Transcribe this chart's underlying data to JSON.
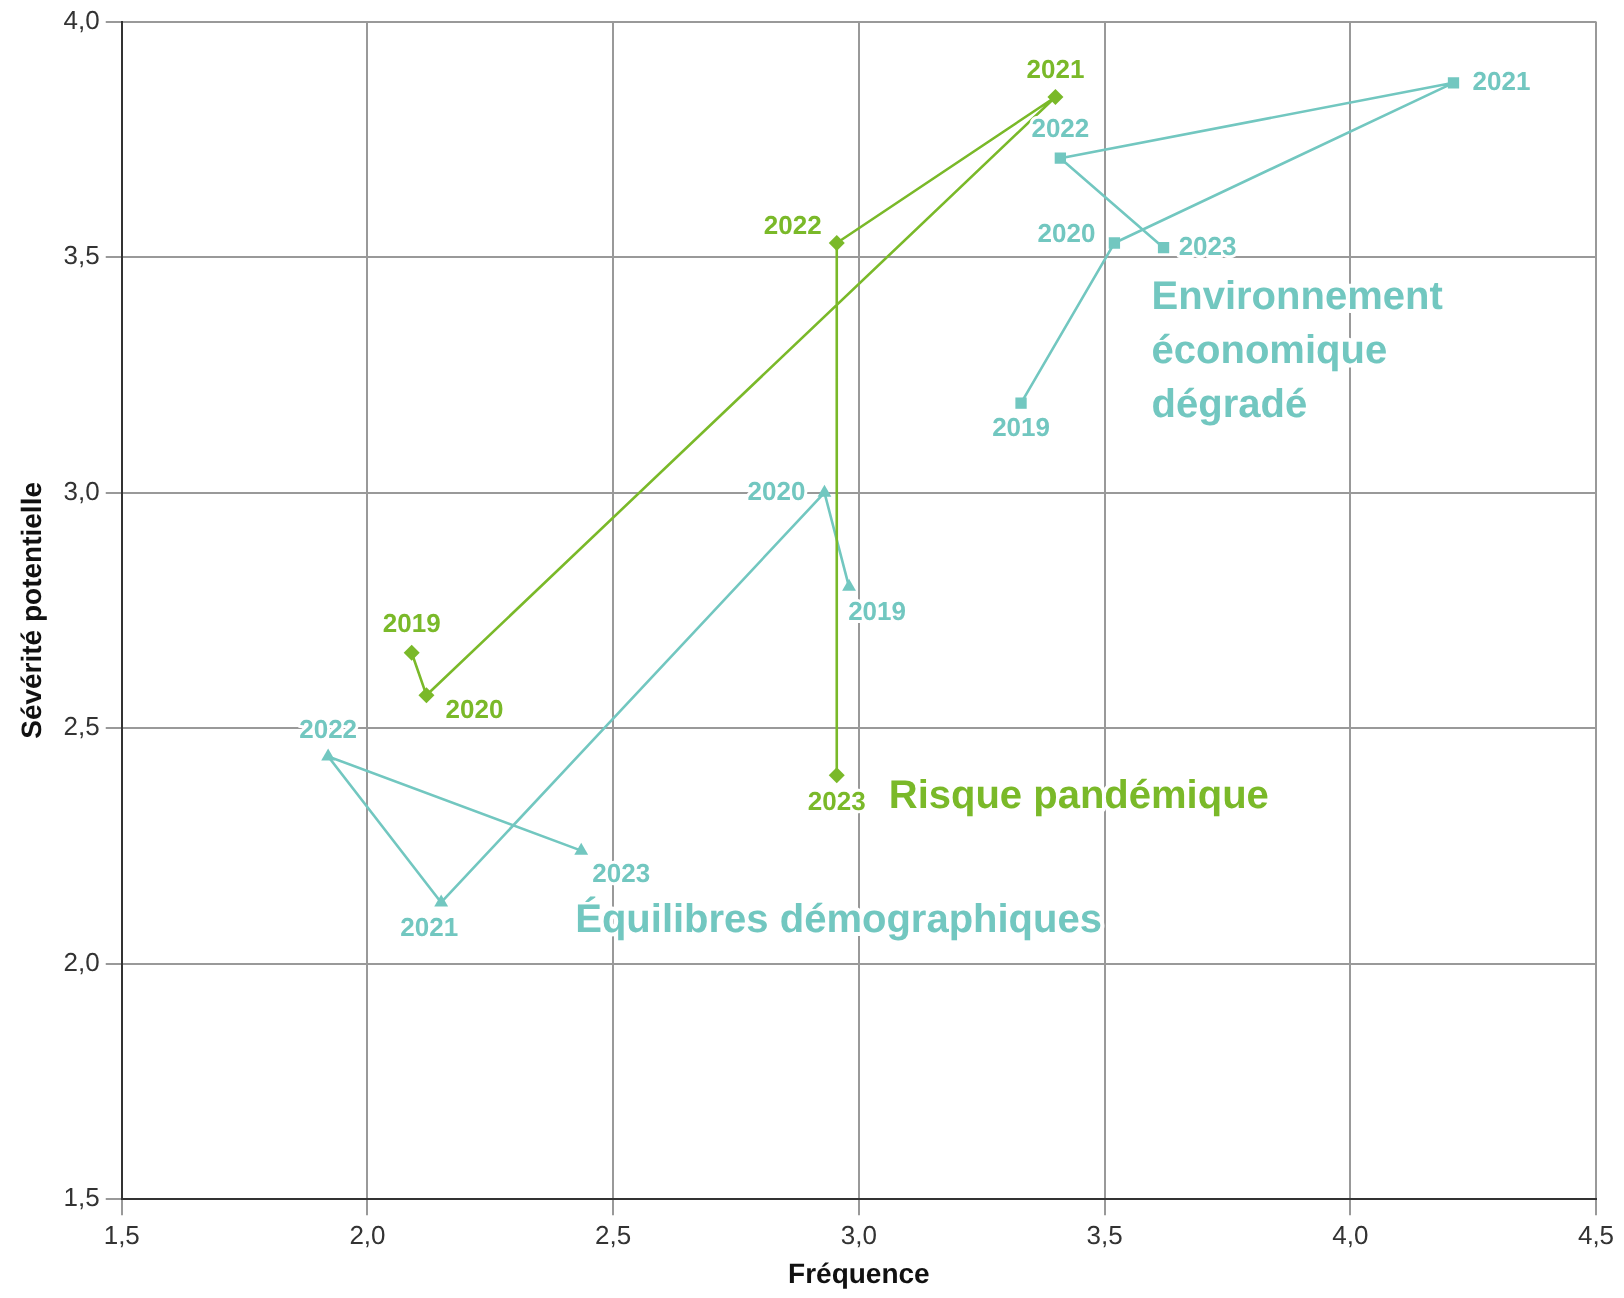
{
  "chart_data": {
    "type": "line",
    "xlabel": "Fréquence",
    "ylabel": "Sévérité potentielle",
    "xlim": [
      1.5,
      4.5
    ],
    "xticks": [
      {
        "value": 1.5,
        "label": "1,5"
      },
      {
        "value": 2,
        "label": "2,0"
      },
      {
        "value": 2.5,
        "label": "2,5"
      },
      {
        "value": 3,
        "label": "3,0"
      },
      {
        "value": 3.5,
        "label": "3,5"
      },
      {
        "value": 4,
        "label": "4,0"
      },
      {
        "value": 4.5,
        "label": "4,5"
      }
    ],
    "ylim": [
      1.5,
      4
    ],
    "yticks": [
      {
        "value": 1.5,
        "label": "1,5"
      },
      {
        "value": 2,
        "label": "2,0"
      },
      {
        "value": 2.5,
        "label": "2,5"
      },
      {
        "value": 3,
        "label": "3,0"
      },
      {
        "value": 3.5,
        "label": "3,5"
      },
      {
        "value": 4,
        "label": "4,0"
      }
    ],
    "grid": true,
    "legend": false,
    "line_style": "solid",
    "series": [
      {
        "name": "Risque pandémique",
        "color": "#7ab929",
        "marker": "diamond",
        "x": [
          2.09,
          2.12,
          3.4,
          2.955,
          2.955
        ],
        "values": [
          2.66,
          2.57,
          3.84,
          3.53,
          2.4
        ]
      },
      {
        "name": "Équilibres démographiques",
        "color": "#72c7c0",
        "marker": "triangle",
        "x": [
          2.98,
          2.93,
          2.15,
          1.92,
          2.435
        ],
        "values": [
          2.8,
          3.0,
          2.13,
          2.44,
          2.24
        ]
      },
      {
        "name": "Environnement économique dégradé",
        "color": "#72c7c0",
        "marker": "square",
        "x": [
          3.33,
          3.52,
          4.21,
          3.41,
          3.62
        ],
        "values": [
          3.19,
          3.53,
          3.87,
          3.71,
          3.52
        ]
      }
    ],
    "annotations": [
      {
        "text": "2019",
        "x": 2.09,
        "y": 2.66
      },
      {
        "text": "2020",
        "x": 2.12,
        "y": 2.57
      },
      {
        "text": "2021",
        "x": 3.4,
        "y": 3.84
      },
      {
        "text": "2022",
        "x": 2.955,
        "y": 3.53
      },
      {
        "text": "2023",
        "x": 2.955,
        "y": 2.4
      },
      {
        "text": "2019",
        "x": 2.98,
        "y": 2.8
      },
      {
        "text": "2020",
        "x": 2.93,
        "y": 3.0
      },
      {
        "text": "2021",
        "x": 2.15,
        "y": 2.13
      },
      {
        "text": "2022",
        "x": 1.92,
        "y": 2.44
      },
      {
        "text": "2023",
        "x": 2.435,
        "y": 2.24
      },
      {
        "text": "2019",
        "x": 3.33,
        "y": 3.19
      },
      {
        "text": "2020",
        "x": 3.52,
        "y": 3.53
      },
      {
        "text": "2021",
        "x": 4.21,
        "y": 3.87
      },
      {
        "text": "2022",
        "x": 3.41,
        "y": 3.71
      },
      {
        "text": "2023",
        "x": 3.62,
        "y": 3.52
      }
    ]
  }
}
